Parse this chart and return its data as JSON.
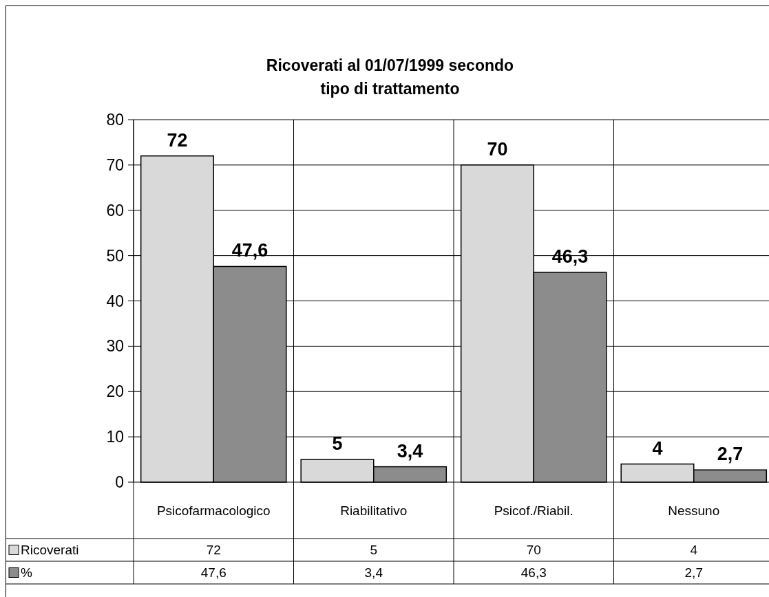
{
  "chart_data": {
    "type": "bar",
    "title": "Ricoverati al 01/07/1999 secondo\ntipo di trattamento",
    "categories": [
      "Psicofarmacologico",
      "Riabilitativo",
      "Psicof./Riabil.",
      "Nessuno"
    ],
    "series": [
      {
        "name": "Ricoverati",
        "color": "#d9d9d9",
        "values": [
          72,
          5,
          70,
          4
        ],
        "value_labels": [
          "72",
          "5",
          "70",
          "4"
        ]
      },
      {
        "name": "%",
        "color": "#8c8c8c",
        "values": [
          47.6,
          3.4,
          46.3,
          2.7
        ],
        "value_labels": [
          "47,6",
          "3,4",
          "46,3",
          "2,7"
        ]
      }
    ],
    "ylim": [
      0,
      80
    ],
    "yticks": [
      0,
      10,
      20,
      30,
      40,
      50,
      60,
      70,
      80
    ],
    "grid": true,
    "legend": "bottom"
  }
}
